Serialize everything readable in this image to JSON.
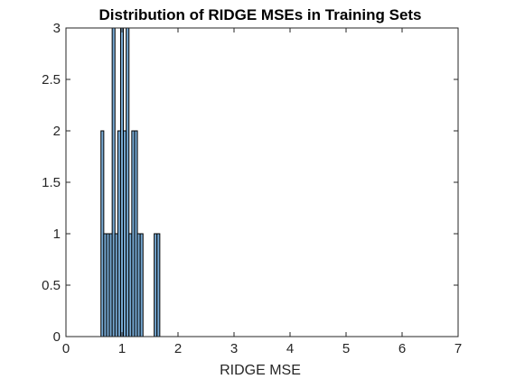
{
  "chart_data": {
    "type": "bar",
    "title": "Distribution of RIDGE MSEs in Training Sets",
    "xlabel": "RIDGE MSE",
    "ylabel": "",
    "xlim": [
      0,
      7
    ],
    "ylim": [
      0,
      3
    ],
    "xticks": [
      "0",
      "1",
      "2",
      "3",
      "4",
      "5",
      "6",
      "7"
    ],
    "yticks": [
      "0",
      "0.5",
      "1",
      "1.5",
      "2",
      "2.5",
      "3"
    ],
    "grid": false,
    "legend": "none",
    "bar_fill": "#76A8D2",
    "bar_edge": "#000000",
    "bin_width": 0.05,
    "bins": [
      {
        "x": 0.65,
        "value": 2
      },
      {
        "x": 0.7,
        "value": 1
      },
      {
        "x": 0.75,
        "value": 1
      },
      {
        "x": 0.8,
        "value": 1
      },
      {
        "x": 0.85,
        "value": 3
      },
      {
        "x": 0.9,
        "value": 1
      },
      {
        "x": 0.95,
        "value": 2
      },
      {
        "x": 1.0,
        "value": 3
      },
      {
        "x": 1.05,
        "value": 2
      },
      {
        "x": 1.1,
        "value": 3
      },
      {
        "x": 1.15,
        "value": 1
      },
      {
        "x": 1.2,
        "value": 2
      },
      {
        "x": 1.25,
        "value": 2
      },
      {
        "x": 1.3,
        "value": 1
      },
      {
        "x": 1.35,
        "value": 1
      },
      {
        "x": 1.4,
        "value": 0
      },
      {
        "x": 1.45,
        "value": 0
      },
      {
        "x": 1.5,
        "value": 0
      },
      {
        "x": 1.55,
        "value": 0
      },
      {
        "x": 1.6,
        "value": 1
      },
      {
        "x": 1.65,
        "value": 1
      }
    ]
  }
}
